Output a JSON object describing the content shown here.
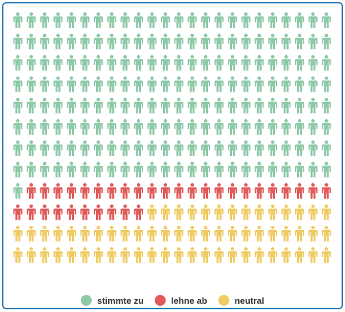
{
  "chart_data": {
    "type": "waffle",
    "unit": "person-icon",
    "columns": 24,
    "rows": 12,
    "total": 288,
    "series": [
      {
        "name": "stimmte zu",
        "count": 193,
        "color": "#8ec9a8"
      },
      {
        "name": "lehne ab",
        "count": 33,
        "color": "#e05a5a"
      },
      {
        "name": "neutral",
        "count": 62,
        "color": "#efcb63"
      }
    ]
  },
  "legend": {
    "items": [
      {
        "label": "stimmte zu",
        "color": "#8ec9a8"
      },
      {
        "label": "lehne ab",
        "color": "#e05a5a"
      },
      {
        "label": "neutral",
        "color": "#efcb63"
      }
    ]
  },
  "colors": {
    "frame": "#2b7bb6"
  }
}
